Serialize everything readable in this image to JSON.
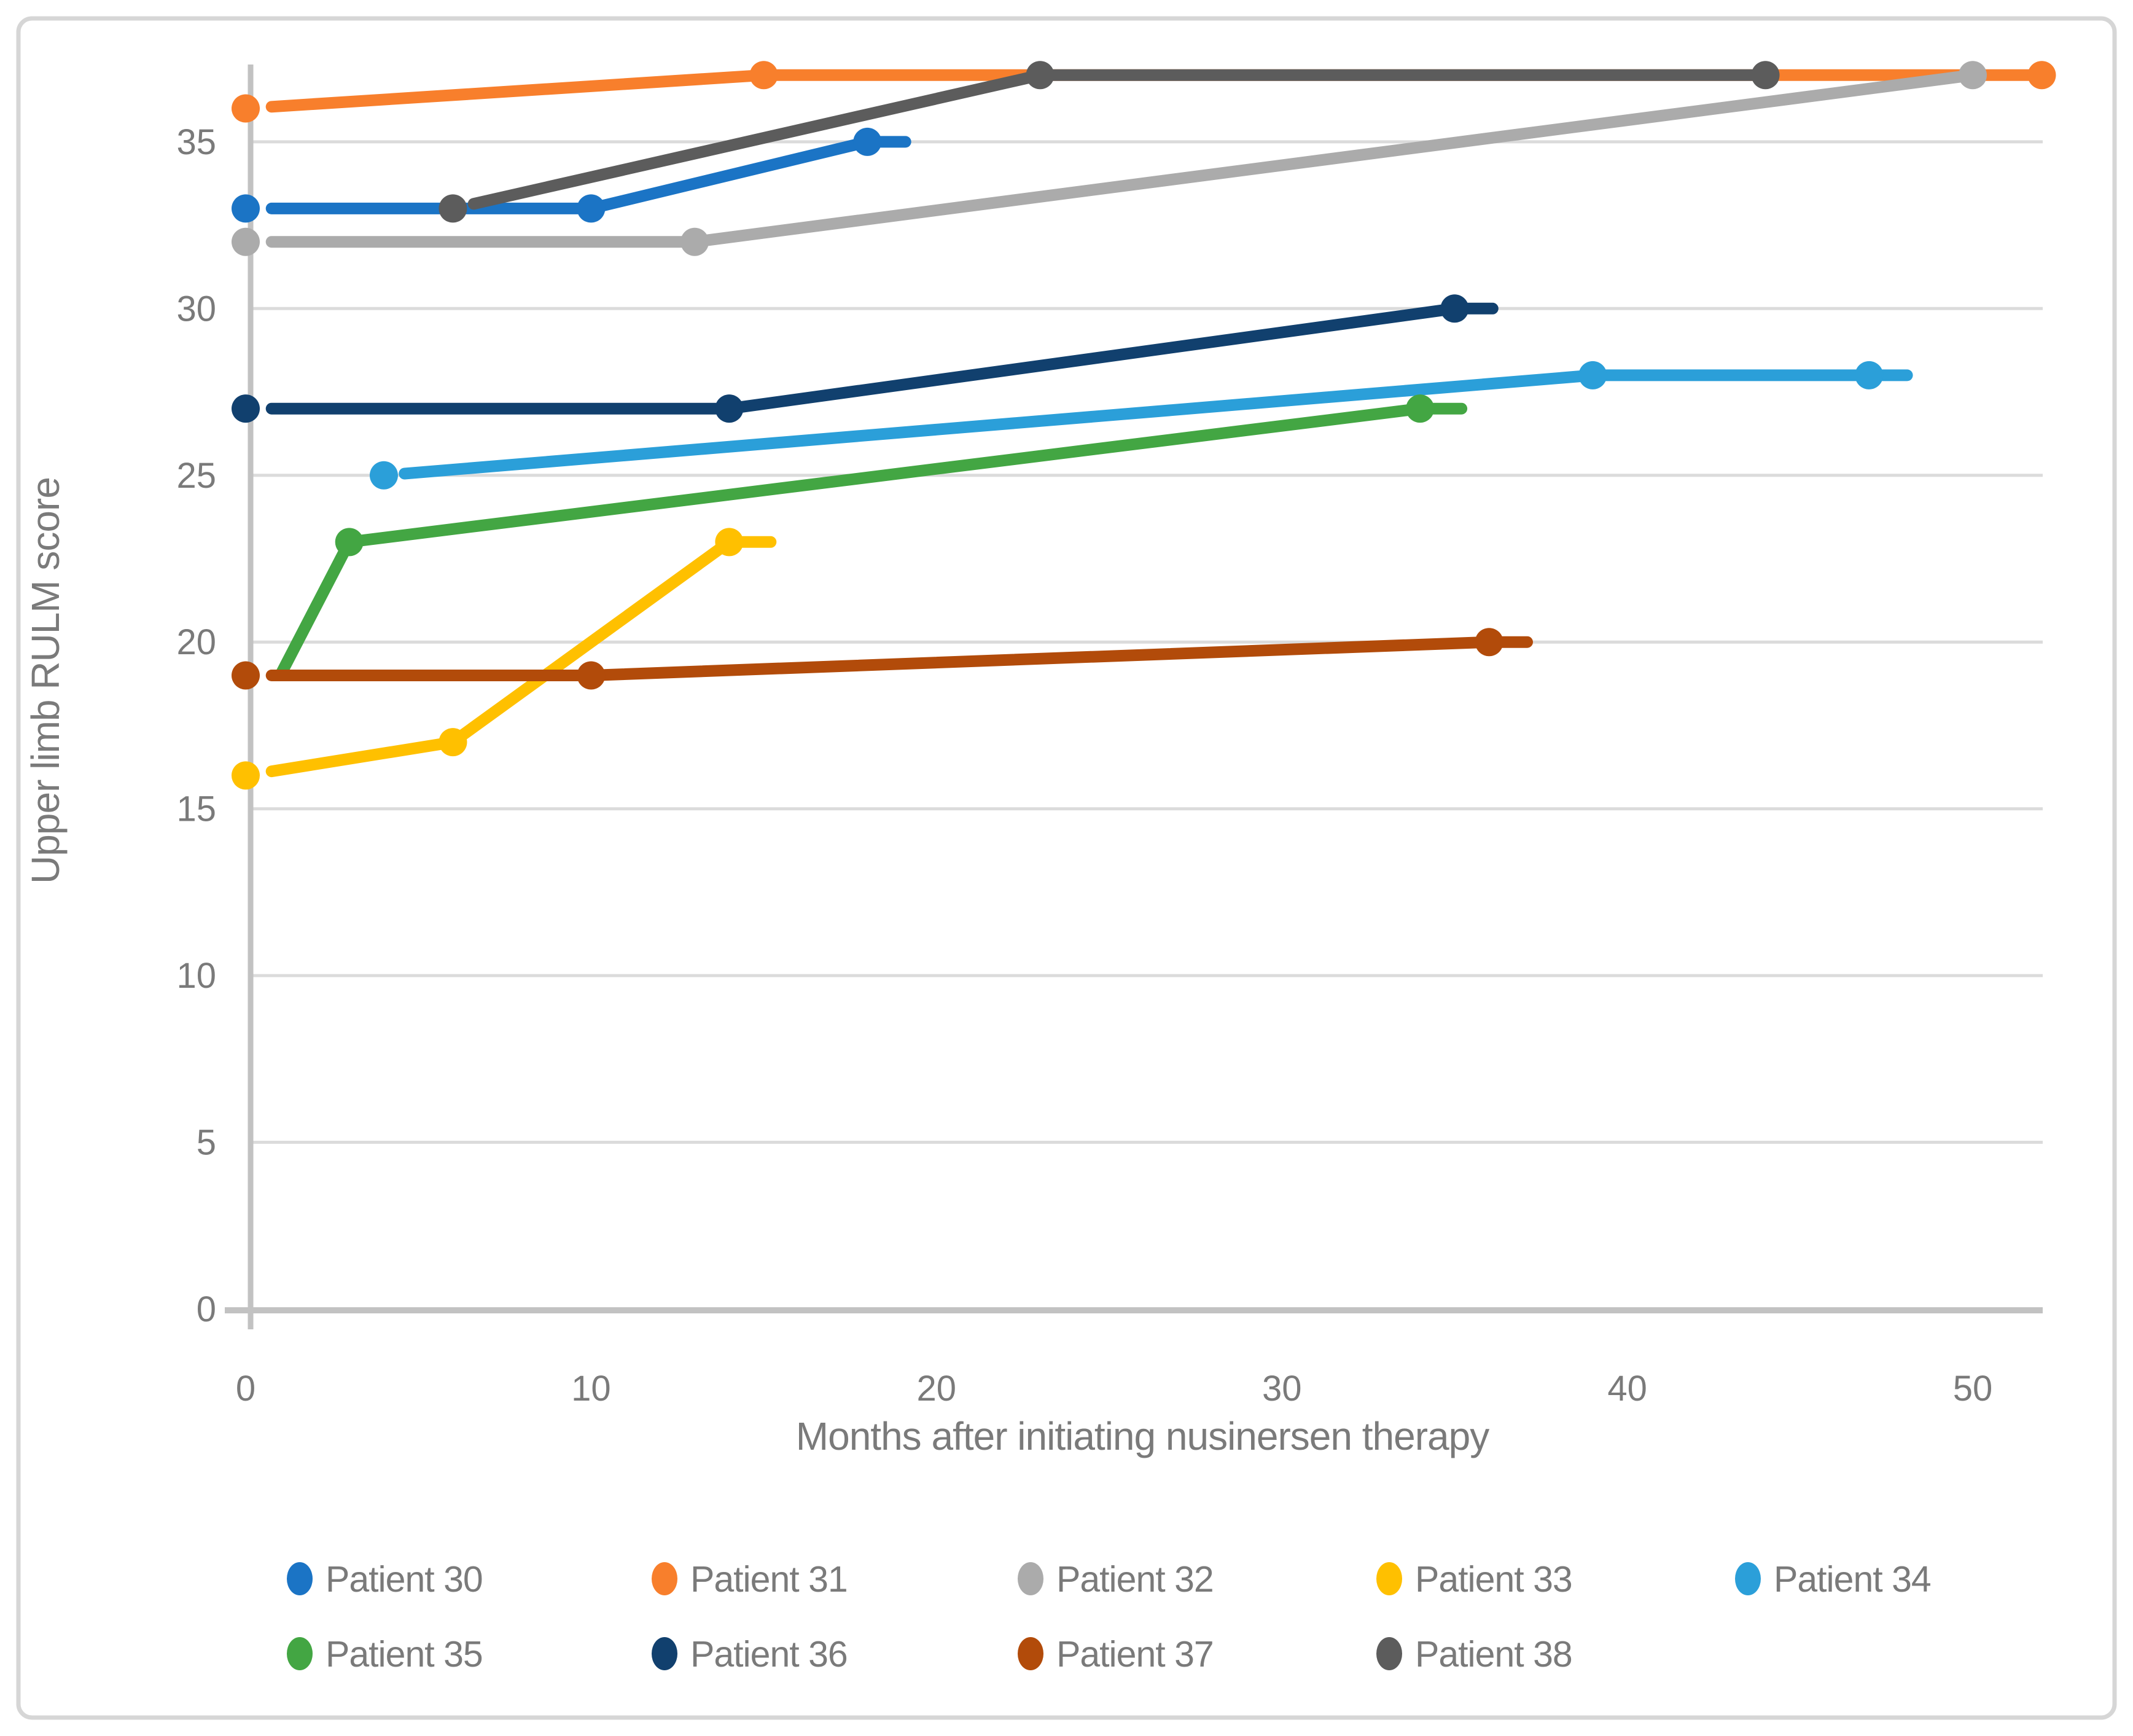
{
  "chart_data": {
    "type": "line",
    "title": "",
    "xlabel": "Months after initiating nusinersen therapy",
    "ylabel": "Upper limb RULM score",
    "xlim": [
      0,
      52.2
    ],
    "ylim": [
      0,
      37.3
    ],
    "xticks": [
      0,
      10,
      20,
      30,
      40,
      50
    ],
    "yticks": [
      0,
      5,
      10,
      15,
      20,
      25,
      30,
      35
    ],
    "grid": "horizontal",
    "legend_position": "bottom",
    "series": [
      {
        "name": "Patient 30",
        "color": "#1B74C5",
        "points": [
          [
            0,
            33
          ],
          [
            10,
            33
          ],
          [
            18,
            35
          ]
        ],
        "start_gap": 0.75,
        "tail": 1.1,
        "skip_first_marker": false
      },
      {
        "name": "Patient 31",
        "color": "#F87F2C",
        "points": [
          [
            0,
            36
          ],
          [
            15,
            37
          ],
          [
            52,
            37
          ]
        ],
        "start_gap": 0.75,
        "tail": 0,
        "skip_first_marker": false
      },
      {
        "name": "Patient 32",
        "color": "#ABABAB",
        "points": [
          [
            0,
            32
          ],
          [
            13,
            32
          ],
          [
            50,
            37
          ]
        ],
        "start_gap": 0.75,
        "tail": 0,
        "skip_first_marker": false
      },
      {
        "name": "Patient 33",
        "color": "#FFC000",
        "points": [
          [
            0,
            16
          ],
          [
            6,
            17
          ],
          [
            14,
            23
          ]
        ],
        "start_gap": 0.75,
        "tail": 1.2,
        "skip_first_marker": false
      },
      {
        "name": "Patient 34",
        "color": "#2B9FD9",
        "points": [
          [
            4,
            25
          ],
          [
            39,
            28
          ],
          [
            47,
            28
          ]
        ],
        "start_gap": 0.6,
        "tail": 1.1,
        "skip_first_marker": false
      },
      {
        "name": "Patient 35",
        "color": "#43A643",
        "points": [
          [
            1,
            19
          ],
          [
            3,
            23
          ],
          [
            34,
            27
          ]
        ],
        "start_gap": 0,
        "tail": 1.2,
        "skip_first_marker": true
      },
      {
        "name": "Patient 36",
        "color": "#11406E",
        "points": [
          [
            0,
            27
          ],
          [
            14,
            27
          ],
          [
            35,
            30
          ]
        ],
        "start_gap": 0.75,
        "tail": 1.1,
        "skip_first_marker": false
      },
      {
        "name": "Patient 37",
        "color": "#B24B0A",
        "points": [
          [
            0,
            19
          ],
          [
            10,
            19
          ],
          [
            36,
            20
          ]
        ],
        "start_gap": 0.75,
        "tail": 1.1,
        "skip_first_marker": false
      },
      {
        "name": "Patient 38",
        "color": "#5C5C5C",
        "points": [
          [
            6,
            33
          ],
          [
            23,
            37
          ],
          [
            44,
            37
          ]
        ],
        "start_gap": 0.6,
        "tail": 0,
        "skip_first_marker": false
      }
    ],
    "style_colors": {
      "gridline": "#DBDBDB",
      "axis_line": "#C2C2C2",
      "text": "#7A7A7A",
      "border": "#D6D6D6",
      "background": "#FFFFFF"
    }
  }
}
